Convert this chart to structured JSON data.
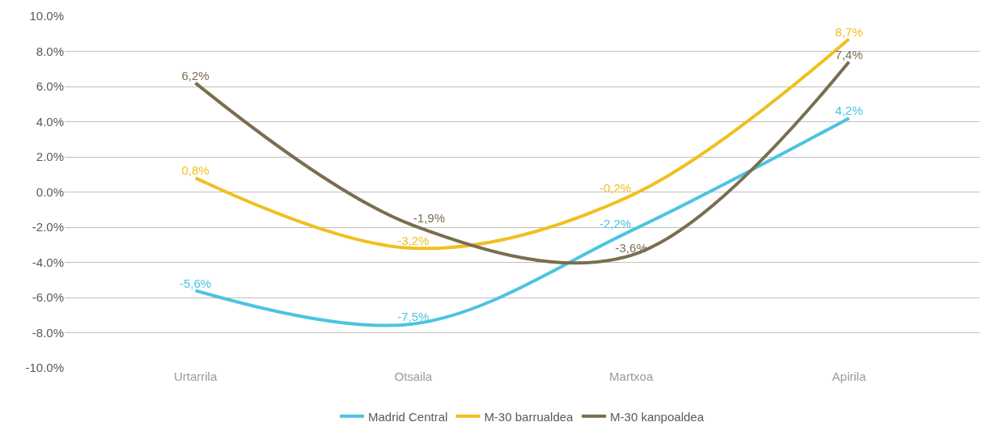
{
  "chart_data": {
    "type": "line",
    "categories": [
      "Urtarrila",
      "Otsaila",
      "Martxoa",
      "Apirila"
    ],
    "series": [
      {
        "name": "Madrid Central",
        "color": "#4dc3e0",
        "values": [
          -5.6,
          -7.5,
          -2.2,
          4.2
        ],
        "value_labels": [
          "-5,6%",
          "-7,5%",
          "-2,2%",
          "4,2%"
        ]
      },
      {
        "name": "M-30 barrualdea",
        "color": "#f0c020",
        "values": [
          0.8,
          -3.2,
          -0.2,
          8.7
        ],
        "value_labels": [
          "0,8%",
          "-3,2%",
          "-0,2%",
          "8,7%"
        ]
      },
      {
        "name": "M-30 kanpoaldea",
        "color": "#7a6e50",
        "values": [
          6.2,
          -1.9,
          -3.6,
          7.4
        ],
        "value_labels": [
          "6,2%",
          "-1,9%",
          "-3,6%",
          "7,4%"
        ]
      }
    ],
    "ylim": [
      -10,
      10
    ],
    "yticks": [
      {
        "value": -10,
        "label": "-10.0%"
      },
      {
        "value": -8,
        "label": "-8.0%"
      },
      {
        "value": -6,
        "label": "-6.0%"
      },
      {
        "value": -4,
        "label": "-4.0%"
      },
      {
        "value": -2,
        "label": "-2.0%"
      },
      {
        "value": 0,
        "label": "0.0%"
      },
      {
        "value": 2,
        "label": "2.0%"
      },
      {
        "value": 4,
        "label": "4.0%"
      },
      {
        "value": 6,
        "label": "6.0%"
      },
      {
        "value": 8,
        "label": "8.0%"
      },
      {
        "value": 10,
        "label": "10.0%"
      }
    ],
    "grid": "y",
    "legend": "bottom",
    "marker": "none",
    "line_style": "solid"
  }
}
